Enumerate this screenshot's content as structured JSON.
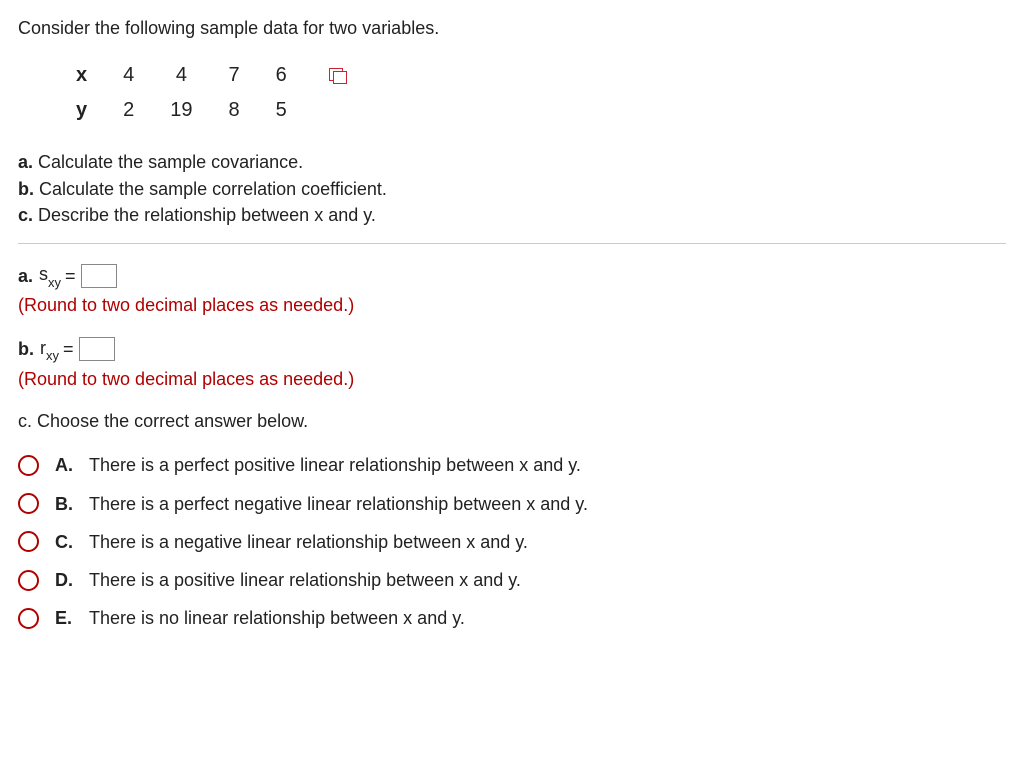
{
  "intro": "Consider the following sample data for two variables.",
  "table": {
    "row_labels": [
      "x",
      "y"
    ],
    "x": [
      "4",
      "4",
      "7",
      "6"
    ],
    "y": [
      "2",
      "19",
      "8",
      "5"
    ]
  },
  "questions": {
    "a": {
      "label": "a.",
      "text": "Calculate the sample covariance."
    },
    "b": {
      "label": "b.",
      "text": "Calculate the sample correlation coefficient."
    },
    "c": {
      "label": "c.",
      "text": "Describe the relationship between x and y."
    }
  },
  "answers": {
    "a": {
      "label": "a.",
      "sym_main": "s",
      "sym_sub": "xy",
      "eq": "="
    },
    "b": {
      "label": "b.",
      "sym_main": "r",
      "sym_sub": "xy",
      "eq": "="
    },
    "hint": "(Round to two decimal places as needed.)",
    "c_prompt_label": "c.",
    "c_prompt_text": "Choose the correct answer below."
  },
  "choices": [
    {
      "label": "A.",
      "text": "There is a perfect positive linear relationship between x and y."
    },
    {
      "label": "B.",
      "text": "There is a perfect negative linear relationship between x and y."
    },
    {
      "label": "C.",
      "text": "There is a negative linear relationship between x and y."
    },
    {
      "label": "D.",
      "text": "There is a positive linear relationship between x and y."
    },
    {
      "label": "E.",
      "text": "There is no linear relationship between x and y."
    }
  ],
  "colors": {
    "hint_color": "#b00000",
    "radio_border": "#b00000",
    "text_color": "#222222",
    "rule_color": "#cccccc"
  }
}
